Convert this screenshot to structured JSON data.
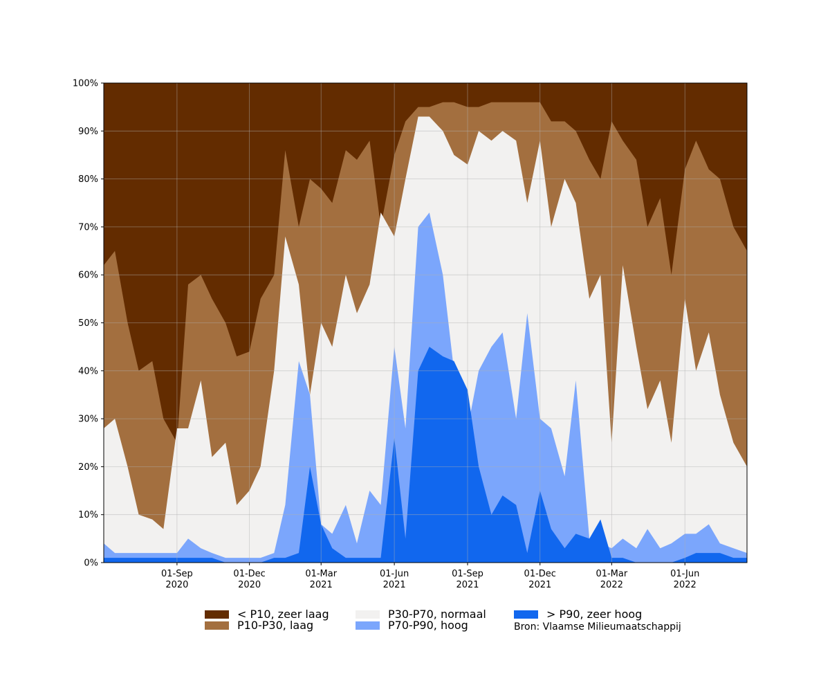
{
  "chart_data": {
    "type": "area",
    "stacked": true,
    "title": "",
    "xlabel": "",
    "ylabel": "",
    "x_range": [
      "2020-06-01",
      "2022-08-18"
    ],
    "ylim": [
      0,
      100
    ],
    "yticks": [
      0,
      10,
      20,
      30,
      40,
      50,
      60,
      70,
      80,
      90,
      100
    ],
    "ytick_labels": [
      "0%",
      "10%",
      "20%",
      "30%",
      "40%",
      "50%",
      "60%",
      "70%",
      "80%",
      "90%",
      "100%"
    ],
    "xticks": [
      {
        "date": "2020-09-01",
        "label": "01-Sep",
        "year": "2020"
      },
      {
        "date": "2020-12-01",
        "label": "01-Dec",
        "year": "2020"
      },
      {
        "date": "2021-03-01",
        "label": "01-Mar",
        "year": "2021"
      },
      {
        "date": "2021-06-01",
        "label": "01-Jun",
        "year": "2021"
      },
      {
        "date": "2021-09-01",
        "label": "01-Sep",
        "year": "2021"
      },
      {
        "date": "2021-12-01",
        "label": "01-Dec",
        "year": "2021"
      },
      {
        "date": "2022-03-01",
        "label": "01-Mar",
        "year": "2022"
      },
      {
        "date": "2022-06-01",
        "label": "01-Jun",
        "year": "2022"
      }
    ],
    "grid": true,
    "legend_position": "bottom",
    "series_order": "bottom-to-top cumulative percentage boundaries",
    "x": [
      "2020-06-01",
      "2020-06-15",
      "2020-07-01",
      "2020-07-15",
      "2020-08-01",
      "2020-08-15",
      "2020-09-01",
      "2020-09-15",
      "2020-10-01",
      "2020-10-15",
      "2020-11-01",
      "2020-11-15",
      "2020-12-01",
      "2020-12-15",
      "2021-01-01",
      "2021-01-15",
      "2021-02-01",
      "2021-02-15",
      "2021-03-01",
      "2021-03-15",
      "2021-04-01",
      "2021-04-15",
      "2021-05-01",
      "2021-05-15",
      "2021-06-01",
      "2021-06-15",
      "2021-07-01",
      "2021-07-15",
      "2021-08-01",
      "2021-08-15",
      "2021-09-01",
      "2021-09-15",
      "2021-10-01",
      "2021-10-15",
      "2021-11-01",
      "2021-11-15",
      "2021-12-01",
      "2021-12-15",
      "2022-01-01",
      "2022-01-15",
      "2022-02-01",
      "2022-02-15",
      "2022-03-01",
      "2022-03-15",
      "2022-04-01",
      "2022-04-15",
      "2022-05-01",
      "2022-05-15",
      "2022-06-01",
      "2022-06-15",
      "2022-07-01",
      "2022-07-15",
      "2022-08-01",
      "2022-08-18"
    ],
    "series": [
      {
        "name": "> P90, zeer hoog",
        "color": "#1167ee",
        "cumulative": [
          1,
          1,
          1,
          1,
          1,
          1,
          1,
          1,
          1,
          1,
          0,
          0,
          0,
          0,
          1,
          1,
          2,
          20,
          8,
          3,
          1,
          1,
          1,
          1,
          26,
          5,
          40,
          45,
          43,
          42,
          36,
          20,
          10,
          14,
          12,
          2,
          15,
          7,
          3,
          6,
          5,
          9,
          1,
          1,
          0,
          0,
          0,
          0,
          1,
          2,
          2,
          2,
          1,
          1
        ]
      },
      {
        "name": "P70-P90, hoog",
        "color": "#7ba6fc",
        "cumulative": [
          4,
          2,
          2,
          2,
          2,
          2,
          2,
          5,
          3,
          2,
          1,
          1,
          1,
          1,
          2,
          12,
          42,
          35,
          8,
          6,
          12,
          4,
          15,
          12,
          45,
          28,
          70,
          73,
          60,
          40,
          28,
          40,
          45,
          48,
          30,
          52,
          30,
          28,
          18,
          38,
          5,
          4,
          3,
          5,
          3,
          7,
          3,
          4,
          6,
          6,
          8,
          4,
          3,
          2
        ]
      },
      {
        "name": "P30-P70, normaal",
        "color": "#f2f1f0",
        "cumulative": [
          28,
          30,
          20,
          10,
          9,
          7,
          28,
          28,
          38,
          22,
          25,
          12,
          15,
          20,
          40,
          68,
          58,
          35,
          50,
          45,
          60,
          52,
          58,
          73,
          68,
          80,
          93,
          93,
          90,
          85,
          83,
          90,
          88,
          90,
          88,
          75,
          88,
          70,
          80,
          75,
          55,
          60,
          25,
          62,
          45,
          32,
          38,
          25,
          55,
          40,
          48,
          35,
          25,
          20
        ]
      },
      {
        "name": "P10-P30, laag",
        "color": "#a36f3f",
        "cumulative": [
          62,
          65,
          50,
          40,
          42,
          30,
          25,
          58,
          60,
          55,
          50,
          43,
          44,
          55,
          60,
          86,
          70,
          80,
          78,
          75,
          86,
          84,
          88,
          70,
          85,
          92,
          95,
          95,
          96,
          96,
          95,
          95,
          96,
          96,
          96,
          96,
          96,
          92,
          92,
          90,
          84,
          80,
          92,
          88,
          84,
          70,
          76,
          60,
          82,
          88,
          82,
          80,
          70,
          65
        ]
      },
      {
        "name": "< P10, zeer laag",
        "color": "#632c00",
        "cumulative": [
          100,
          100,
          100,
          100,
          100,
          100,
          100,
          100,
          100,
          100,
          100,
          100,
          100,
          100,
          100,
          100,
          100,
          100,
          100,
          100,
          100,
          100,
          100,
          100,
          100,
          100,
          100,
          100,
          100,
          100,
          100,
          100,
          100,
          100,
          100,
          100,
          100,
          100,
          100,
          100,
          100,
          100,
          100,
          100,
          100,
          100,
          100,
          100,
          100,
          100,
          100,
          100,
          100,
          100
        ]
      }
    ],
    "legend": [
      {
        "label": "< P10, zeer laag",
        "color": "#632c00"
      },
      {
        "label": "P10-P30, laag",
        "color": "#a36f3f"
      },
      {
        "label": "P30-P70, normaal",
        "color": "#f2f1f0"
      },
      {
        "label": "P70-P90, hoog",
        "color": "#7ba6fc"
      },
      {
        "label": "> P90, zeer hoog",
        "color": "#1167ee"
      }
    ],
    "source_note": "Bron: Vlaamse Milieumaatschappij"
  }
}
